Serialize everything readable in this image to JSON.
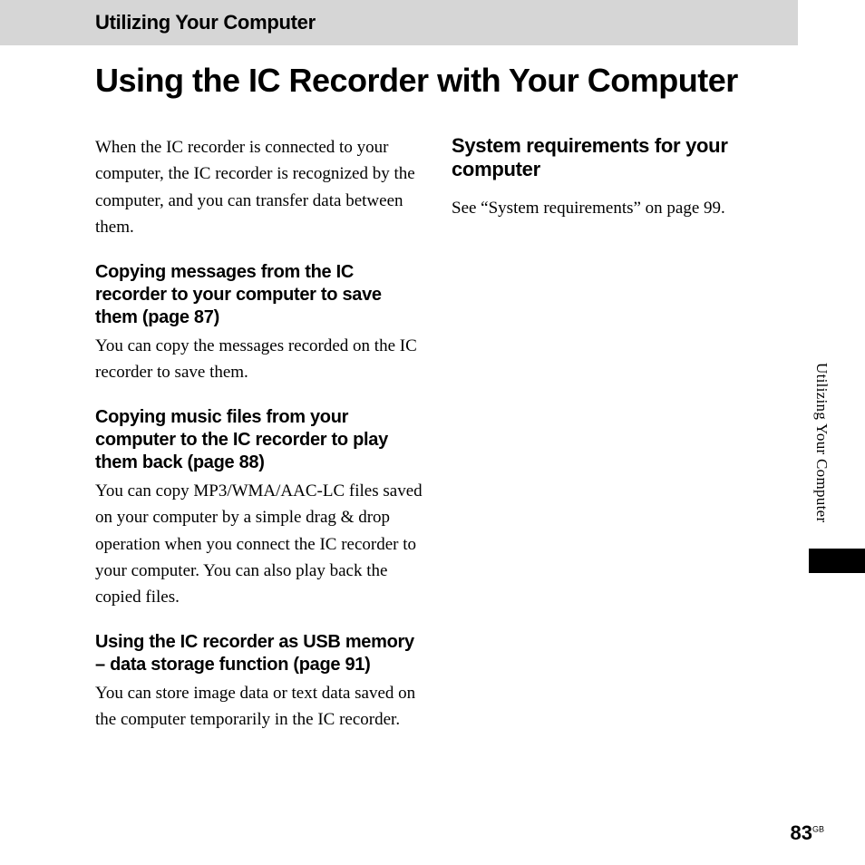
{
  "header": {
    "section": "Utilizing Your Computer"
  },
  "title": "Using the IC Recorder with Your Computer",
  "left_column": {
    "intro": "When the IC recorder is connected to your computer, the IC recorder is recognized by the computer, and you can transfer data between them.",
    "sections": [
      {
        "heading": "Copying messages from the IC recorder to your computer to save them (page 87)",
        "body": "You can copy the messages recorded on the IC recorder to save them."
      },
      {
        "heading": "Copying music files from your computer to the IC recorder to play them back (page 88)",
        "body": "You can copy MP3/WMA/AAC-LC files saved on your computer by a simple drag & drop operation when you connect the IC recorder to your computer. You can also play back the copied files."
      },
      {
        "heading": "Using the IC recorder as USB memory – data storage function (page 91)",
        "body": "You can store image data or text data saved on the computer temporarily in the IC recorder."
      }
    ]
  },
  "right_column": {
    "heading": "System requirements for your computer",
    "body": "See “System requirements” on page 99."
  },
  "side_tab": "Utilizing Your Computer",
  "page": {
    "number": "83",
    "suffix": "GB"
  },
  "colors": {
    "header_bg": "#d6d6d6",
    "text": "#000000",
    "bg": "#ffffff",
    "tab": "#000000"
  }
}
